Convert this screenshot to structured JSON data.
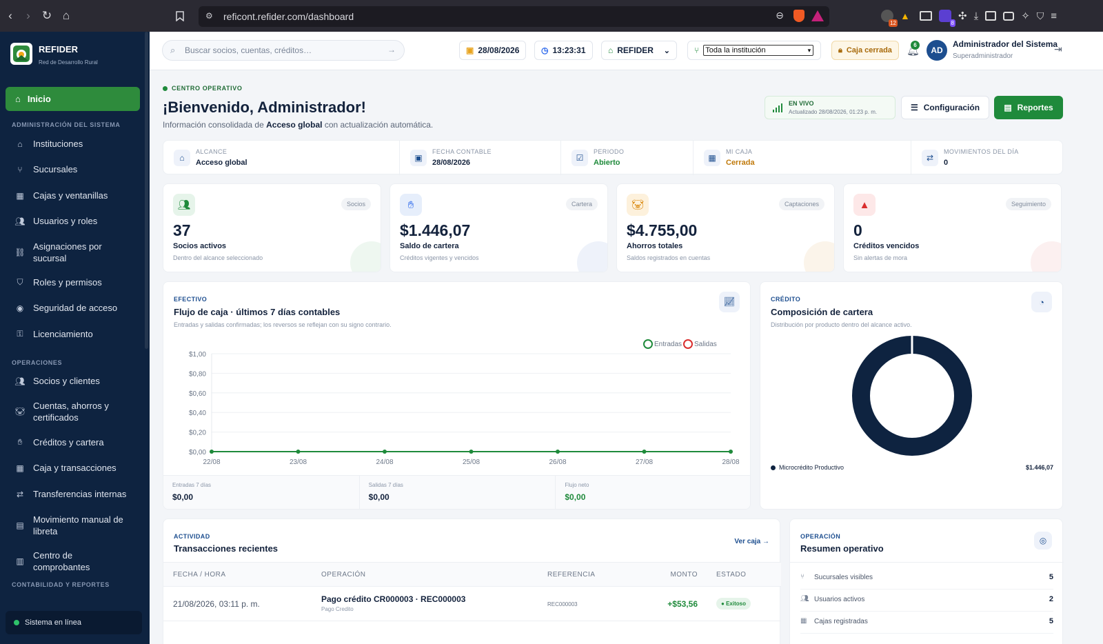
{
  "browser": {
    "url": "reficont.refider.com/dashboard",
    "ext_badge_1": "12",
    "ext_badge_2": "8"
  },
  "sidebar": {
    "brand": "REFIDER",
    "brand_sub": "Red de Desarrollo Rural",
    "active": "Inicio",
    "sections": [
      "ADMINISTRACIÓN DEL SISTEMA",
      "OPERACIONES",
      "CONTABILIDAD Y REPORTES"
    ],
    "admin_items": [
      "Instituciones",
      "Sucursales",
      "Cajas y ventanillas",
      "Usuarios y roles",
      "Asignaciones por sucursal",
      "Roles y permisos",
      "Seguridad de acceso",
      "Licenciamiento"
    ],
    "ops_items": [
      "Socios y clientes",
      "Cuentas, ahorros y certificados",
      "Créditos y cartera",
      "Caja y transacciones",
      "Transferencias internas",
      "Movimiento manual de libreta",
      "Centro de comprobantes"
    ],
    "status": "Sistema en línea"
  },
  "topbar": {
    "search_placeholder": "Buscar socios, cuentas, créditos…",
    "date": "28/08/2026",
    "time": "13:23:31",
    "institution": "REFIDER",
    "scope_select": "Toda la institución",
    "cash_status": "Caja cerrada",
    "notifications": "6",
    "user_initials": "AD",
    "user_name": "Administrador del Sistema",
    "user_role": "Superadministrador"
  },
  "header": {
    "eyebrow": "CENTRO OPERATIVO",
    "title": "¡Bienvenido, Administrador!",
    "subtitle_pre": "Información consolidada de",
    "subtitle_bold": "Acceso global",
    "subtitle_post": "con actualización automática.",
    "live_label": "EN VIVO",
    "live_updated": "Actualizado 28/08/2026, 01:23 p. m.",
    "config_button": "Configuración",
    "reports_button": "Reportes"
  },
  "info_strip": [
    {
      "label": "ALCANCE",
      "value": "Acceso global",
      "color": "#13223c",
      "icon": "bank-icon"
    },
    {
      "label": "FECHA CONTABLE",
      "value": "28/08/2026",
      "color": "#13223c",
      "icon": "calendar-icon"
    },
    {
      "label": "PERIODO",
      "value": "Abierto",
      "color": "#1f8a3b",
      "icon": "calendar-check-icon"
    },
    {
      "label": "MI CAJA",
      "value": "Cerrada",
      "color": "#c07a0c",
      "icon": "cash-register-icon"
    },
    {
      "label": "MOVIMIENTOS DEL DÍA",
      "value": "0",
      "color": "#13223c",
      "icon": "swap-icon"
    }
  ],
  "kpis": [
    {
      "badge": "Socios",
      "value": "37",
      "label": "Socios activos",
      "sub": "Dentro del alcance seleccionado",
      "icon_bg": "#e6f4ea",
      "icon_color": "#1f8a3b",
      "icon": "users-icon",
      "deco": "#eef7f0"
    },
    {
      "badge": "Cartera",
      "value": "$1.446,07",
      "label": "Saldo de cartera",
      "sub": "Créditos vigentes y vencidos",
      "icon_bg": "#e6eefb",
      "icon_color": "#2563eb",
      "icon": "hand-coin-icon",
      "deco": "#eef2fa"
    },
    {
      "badge": "Captaciones",
      "value": "$4.755,00",
      "label": "Ahorros totales",
      "sub": "Saldos registrados en cuentas",
      "icon_bg": "#fdf1dc",
      "icon_color": "#d9860a",
      "icon": "piggy-bank-icon",
      "deco": "#fbf4ea"
    },
    {
      "badge": "Seguimiento",
      "value": "0",
      "label": "Créditos vencidos",
      "sub": "Sin alertas de mora",
      "icon_bg": "#fde8e8",
      "icon_color": "#d92d2d",
      "icon": "warning-icon",
      "deco": "#fcf0f0"
    }
  ],
  "cashflow": {
    "eyebrow": "EFECTIVO",
    "title": "Flujo de caja · últimos 7 días contables",
    "subtitle": "Entradas y salidas confirmadas; los reversos se reflejan con su signo contrario.",
    "summary": [
      {
        "label": "Entradas 7 días",
        "value": "$0,00",
        "color": "#13223c"
      },
      {
        "label": "Salidas 7 días",
        "value": "$0,00",
        "color": "#13223c"
      },
      {
        "label": "Flujo neto",
        "value": "$0,00",
        "color": "#1f8a3b"
      }
    ]
  },
  "chart_data": [
    {
      "type": "line",
      "x": [
        "22/08",
        "23/08",
        "24/08",
        "25/08",
        "26/08",
        "27/08",
        "28/08"
      ],
      "y_ticks": [
        "$0,00",
        "$0,20",
        "$0,40",
        "$0,60",
        "$0,80",
        "$1,00"
      ],
      "ylim": [
        0,
        1
      ],
      "legend_position": "top-right",
      "series": [
        {
          "name": "Entradas",
          "values": [
            0,
            0,
            0,
            0,
            0,
            0,
            0
          ],
          "color": "#1f8a3b"
        },
        {
          "name": "Salidas",
          "values": [
            0,
            0,
            0,
            0,
            0,
            0,
            0
          ],
          "color": "#d92d2d"
        }
      ]
    },
    {
      "type": "pie",
      "categories": [
        "Microcrédito Productivo"
      ],
      "values": [
        1446.07
      ],
      "value_labels": [
        "$1.446,07"
      ],
      "colors": [
        "#0e2340"
      ],
      "legend_position": "bottom"
    }
  ],
  "portfolio": {
    "eyebrow": "CRÉDITO",
    "title": "Composición de cartera",
    "subtitle": "Distribución por producto dentro del alcance activo."
  },
  "transactions": {
    "eyebrow": "ACTIVIDAD",
    "title": "Transacciones recientes",
    "link": "Ver caja",
    "columns": [
      "FECHA / HORA",
      "OPERACIÓN",
      "REFERENCIA",
      "MONTO",
      "ESTADO"
    ],
    "rows": [
      {
        "date": "21/08/2026, 03:11 p. m.",
        "operation": "Pago crédito CR000003 · REC000003",
        "op_sub": "Pago Credito",
        "reference": "REC000003",
        "amount": "+$53,56",
        "status": "Exitoso"
      }
    ]
  },
  "summary": {
    "eyebrow": "OPERACIÓN",
    "title": "Resumen operativo",
    "rows": [
      {
        "label": "Sucursales visibles",
        "value": "5",
        "icon": "branch-icon"
      },
      {
        "label": "Usuarios activos",
        "value": "2",
        "icon": "users-icon"
      },
      {
        "label": "Cajas registradas",
        "value": "5",
        "icon": "cash-register-icon"
      }
    ]
  }
}
